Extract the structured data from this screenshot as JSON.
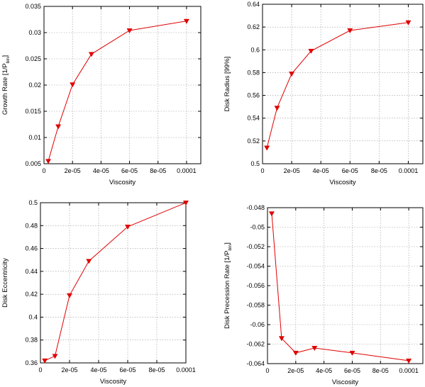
{
  "chart_data": [
    {
      "type": "line",
      "xlabel": "Viscosity",
      "ylabel": "Growth Rate [1/P",
      "ylabel_sub": "bin",
      "ylabel_suffix": "]",
      "xlim": [
        0,
        0.00011
      ],
      "ylim": [
        0.005,
        0.035
      ],
      "xticks": [
        0,
        2e-05,
        4e-05,
        6e-05,
        8e-05,
        0.0001
      ],
      "xtick_labels": [
        "0",
        "2e-05",
        "4e-05",
        "6e-05",
        "8e-05",
        "0.0001"
      ],
      "yticks": [
        0.005,
        0.01,
        0.015,
        0.02,
        0.025,
        0.03,
        0.035
      ],
      "ytick_labels": [
        "0.005",
        "0.01",
        "0.015",
        "0.02",
        "0.025",
        "0.03",
        "0.035"
      ],
      "grid": true,
      "color": "#e00000",
      "marker": "triangle-down",
      "series": [
        {
          "x": [
            3e-06,
            1e-05,
            2e-05,
            3.33e-05,
            6e-05,
            0.0001
          ],
          "y": [
            0.0055,
            0.0121,
            0.0201,
            0.0259,
            0.0304,
            0.0322
          ]
        }
      ]
    },
    {
      "type": "line",
      "xlabel": "Viscosity",
      "ylabel": "Disk Radius [99%]",
      "xlim": [
        0,
        0.00011
      ],
      "ylim": [
        0.5,
        0.64
      ],
      "xticks": [
        0,
        2e-05,
        4e-05,
        6e-05,
        8e-05,
        0.0001
      ],
      "xtick_labels": [
        "0",
        "2e-05",
        "4e-05",
        "6e-05",
        "8e-05",
        "0.0001"
      ],
      "yticks": [
        0.5,
        0.52,
        0.54,
        0.56,
        0.58,
        0.6,
        0.62,
        0.64
      ],
      "ytick_labels": [
        "0.5",
        "0.52",
        "0.54",
        "0.56",
        "0.58",
        "0.6",
        "0.62",
        "0.64"
      ],
      "grid": true,
      "color": "#e00000",
      "marker": "triangle-down",
      "series": [
        {
          "x": [
            3e-06,
            1e-05,
            2e-05,
            3.33e-05,
            6e-05,
            0.0001
          ],
          "y": [
            0.514,
            0.549,
            0.579,
            0.599,
            0.617,
            0.624
          ]
        }
      ]
    },
    {
      "type": "line",
      "xlabel": "Viscosity",
      "ylabel": "Disk Eccentricity",
      "xlim": [
        0,
        0.0001
      ],
      "ylim": [
        0.36,
        0.5
      ],
      "xticks": [
        0,
        2e-05,
        4e-05,
        6e-05,
        8e-05,
        0.0001
      ],
      "xtick_labels": [
        "0",
        "2e-05",
        "4e-05",
        "6e-05",
        "8e-05",
        "0.0001"
      ],
      "yticks": [
        0.36,
        0.38,
        0.4,
        0.42,
        0.44,
        0.46,
        0.48,
        0.5
      ],
      "ytick_labels": [
        "0.36",
        "0.38",
        "0.4",
        "0.42",
        "0.44",
        "0.46",
        "0.48",
        "0.5"
      ],
      "grid": true,
      "color": "#e00000",
      "marker": "triangle-down",
      "series": [
        {
          "x": [
            3e-06,
            1e-05,
            2e-05,
            3.33e-05,
            6e-05,
            0.0001
          ],
          "y": [
            0.362,
            0.366,
            0.419,
            0.449,
            0.479,
            0.5
          ]
        }
      ]
    },
    {
      "type": "line",
      "xlabel": "Viscosity",
      "ylabel": "Disk Precession Rate [1/P",
      "ylabel_sub": "bin",
      "ylabel_suffix": "]",
      "xlim": [
        0,
        0.00011
      ],
      "ylim": [
        -0.064,
        -0.048
      ],
      "xticks": [
        0,
        2e-05,
        4e-05,
        6e-05,
        8e-05,
        0.0001
      ],
      "xtick_labels": [
        "0",
        "2e-05",
        "4e-05",
        "6e-05",
        "8e-05",
        "0.0001"
      ],
      "yticks": [
        -0.064,
        -0.062,
        -0.06,
        -0.058,
        -0.056,
        -0.054,
        -0.052,
        -0.05,
        -0.048
      ],
      "ytick_labels": [
        "-0.064",
        "-0.062",
        "-0.06",
        "-0.058",
        "-0.056",
        "-0.054",
        "-0.052",
        "-0.05",
        "-0.048"
      ],
      "grid": true,
      "color": "#e00000",
      "marker": "triangle-down",
      "series": [
        {
          "x": [
            3e-06,
            1e-05,
            2e-05,
            3.33e-05,
            6e-05,
            0.0001
          ],
          "y": [
            -0.0486,
            -0.0614,
            -0.0629,
            -0.0624,
            -0.0629,
            -0.0637
          ]
        }
      ]
    }
  ]
}
